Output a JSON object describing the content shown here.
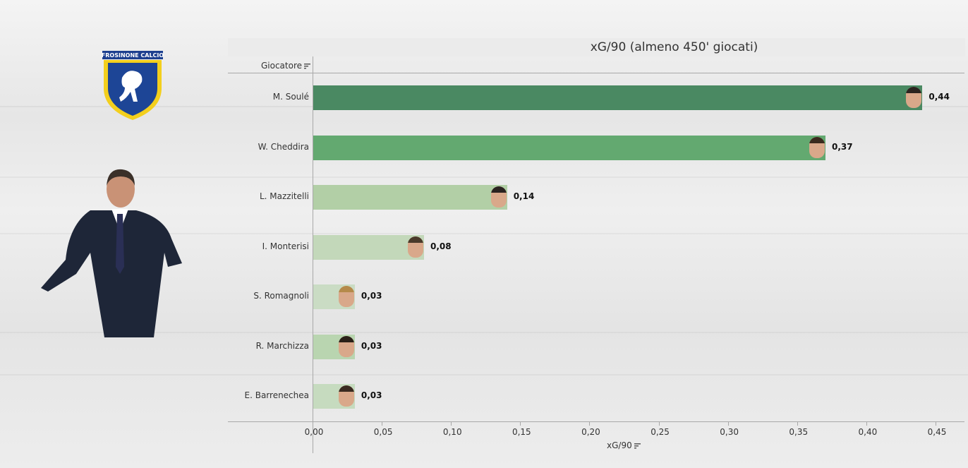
{
  "dashboard": {
    "logo_text": "FROSINONE CALCIO"
  },
  "chart_data": {
    "type": "bar",
    "orientation": "horizontal",
    "title": "xG/90 (almeno 450' giocati)",
    "row_header": "Giocatore",
    "xlabel": "xG/90",
    "categories": [
      "M. Soulé",
      "W. Cheddira",
      "L. Mazzitelli",
      "I. Monterisi",
      "S. Romagnoli",
      "R. Marchizza",
      "E. Barrenechea"
    ],
    "values": [
      0.44,
      0.37,
      0.14,
      0.08,
      0.03,
      0.03,
      0.03
    ],
    "value_labels": [
      "0,44",
      "0,37",
      "0,14",
      "0,08",
      "0,03",
      "0,03",
      "0,03"
    ],
    "bar_colors": [
      "#4a8962",
      "#63a970",
      "#b2cfa6",
      "#c3d8ba",
      "#cadcc4",
      "#b9d5b0",
      "#c6dbbf"
    ],
    "xlim": [
      0,
      0.47
    ],
    "x_ticks": [
      "0,00",
      "0,05",
      "0,10",
      "0,15",
      "0,20",
      "0,25",
      "0,30",
      "0,35",
      "0,40",
      "0,45"
    ],
    "x_tick_values": [
      0,
      0.05,
      0.1,
      0.15,
      0.2,
      0.25,
      0.3,
      0.35,
      0.4,
      0.45
    ],
    "grid": false
  }
}
